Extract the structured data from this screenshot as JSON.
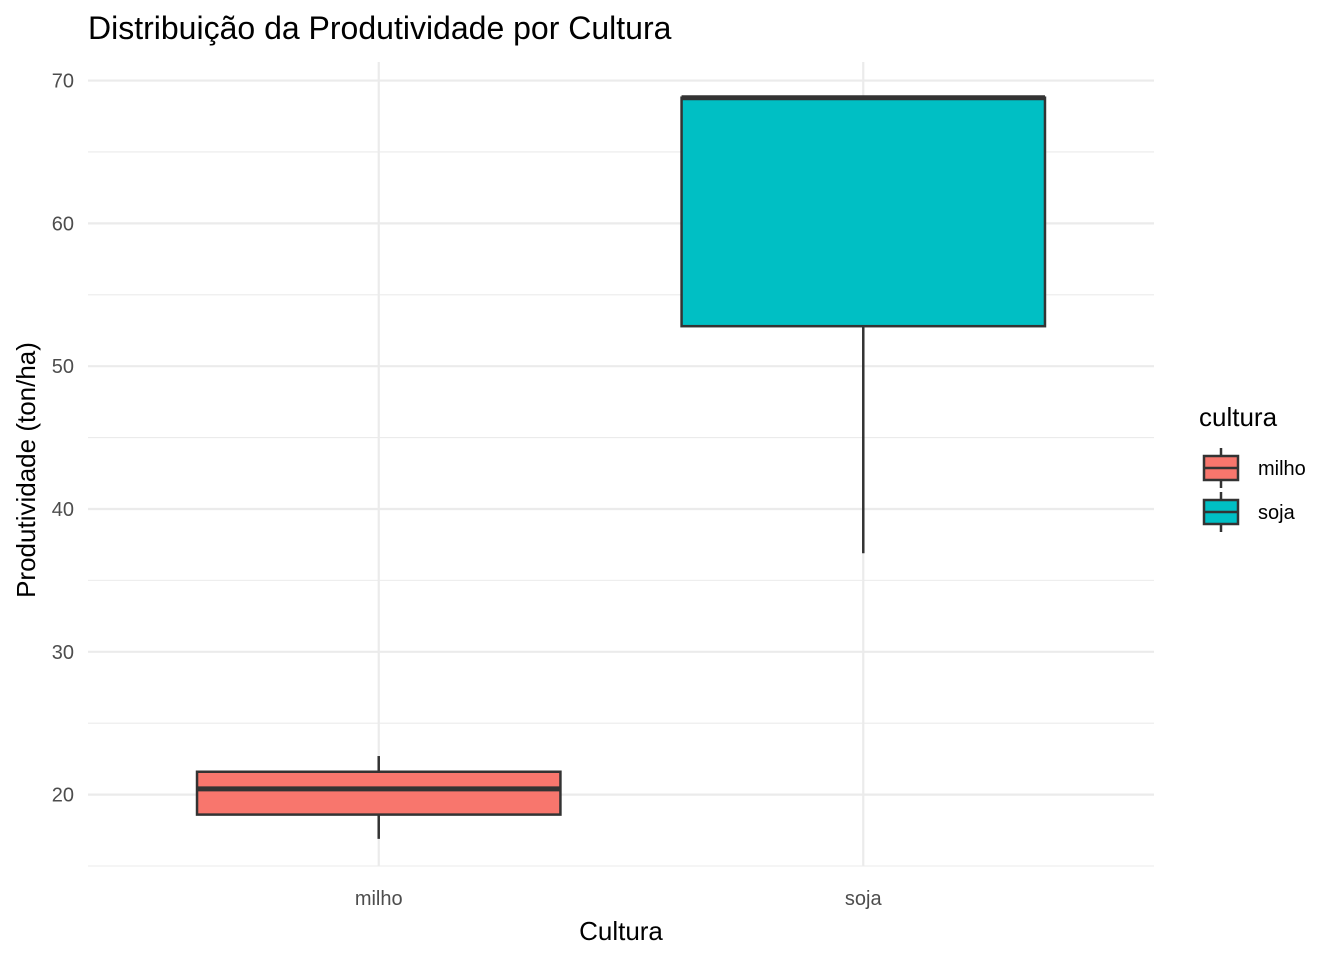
{
  "chart_data": {
    "type": "box",
    "title": "Distribuição da Produtividade por Cultura",
    "xlabel": "Cultura",
    "ylabel": "Produtividade (ton/ha)",
    "categories": [
      "milho",
      "soja"
    ],
    "ylim": [
      15,
      71.3
    ],
    "yticks": [
      20,
      30,
      40,
      50,
      60,
      70
    ],
    "grid": true,
    "legend": {
      "title": "cultura",
      "position": "right"
    },
    "series": [
      {
        "name": "milho",
        "color": "#F8766D",
        "min": 16.9,
        "q1": 18.6,
        "median": 20.4,
        "q3": 21.6,
        "max": 22.7
      },
      {
        "name": "soja",
        "color": "#00BFC4",
        "min": 36.9,
        "q1": 52.8,
        "median": 68.8,
        "q3": 68.8,
        "max": 68.8
      }
    ]
  }
}
